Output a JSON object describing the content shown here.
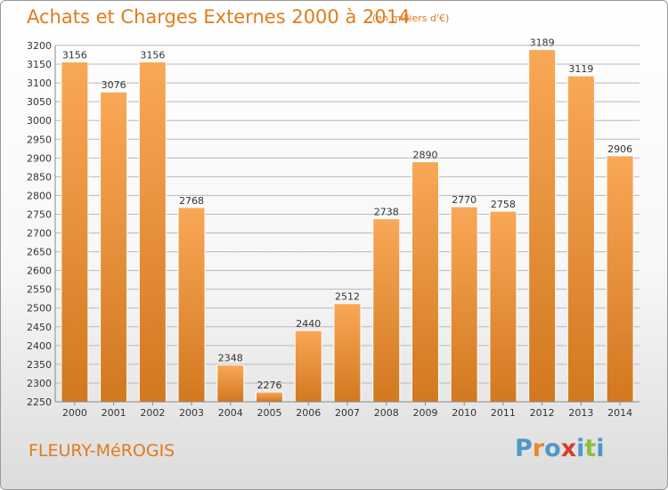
{
  "header": {
    "title": "Achats et Charges Externes 2000 à 2014",
    "subtitle": "(en milliers d'€)"
  },
  "footer": {
    "town": "FLEURY-MéROGIS",
    "logo_text": "Proxiti",
    "logo_letters": [
      {
        "ch": "P",
        "color": "#4f97c9"
      },
      {
        "ch": "r",
        "color": "#e8892b"
      },
      {
        "ch": "o",
        "color": "#4f97c9"
      },
      {
        "ch": "x",
        "color": "#d93b2e"
      },
      {
        "ch": "i",
        "color": "#4f97c9"
      },
      {
        "ch": "t",
        "color": "#8cbf3f"
      },
      {
        "ch": "i",
        "color": "#4f97c9"
      }
    ]
  },
  "colors": {
    "accent": "#e07b1c",
    "bar_light": "#f9a857",
    "bar_dark": "#d2781f",
    "grid": "#b9b9b9"
  },
  "chart_data": {
    "type": "bar",
    "title": "Achats et Charges Externes 2000 à 2014",
    "subtitle": "(en milliers d'€)",
    "categories": [
      "2000",
      "2001",
      "2002",
      "2003",
      "2004",
      "2005",
      "2006",
      "2007",
      "2008",
      "2009",
      "2010",
      "2011",
      "2012",
      "2013",
      "2014"
    ],
    "values": [
      3156,
      3076,
      3156,
      2768,
      2348,
      2276,
      2440,
      2512,
      2738,
      2890,
      2770,
      2758,
      3189,
      3119,
      2906
    ],
    "ylim": [
      2250,
      3200
    ],
    "ytick_step": 50,
    "grid": true,
    "data_labels": true
  }
}
